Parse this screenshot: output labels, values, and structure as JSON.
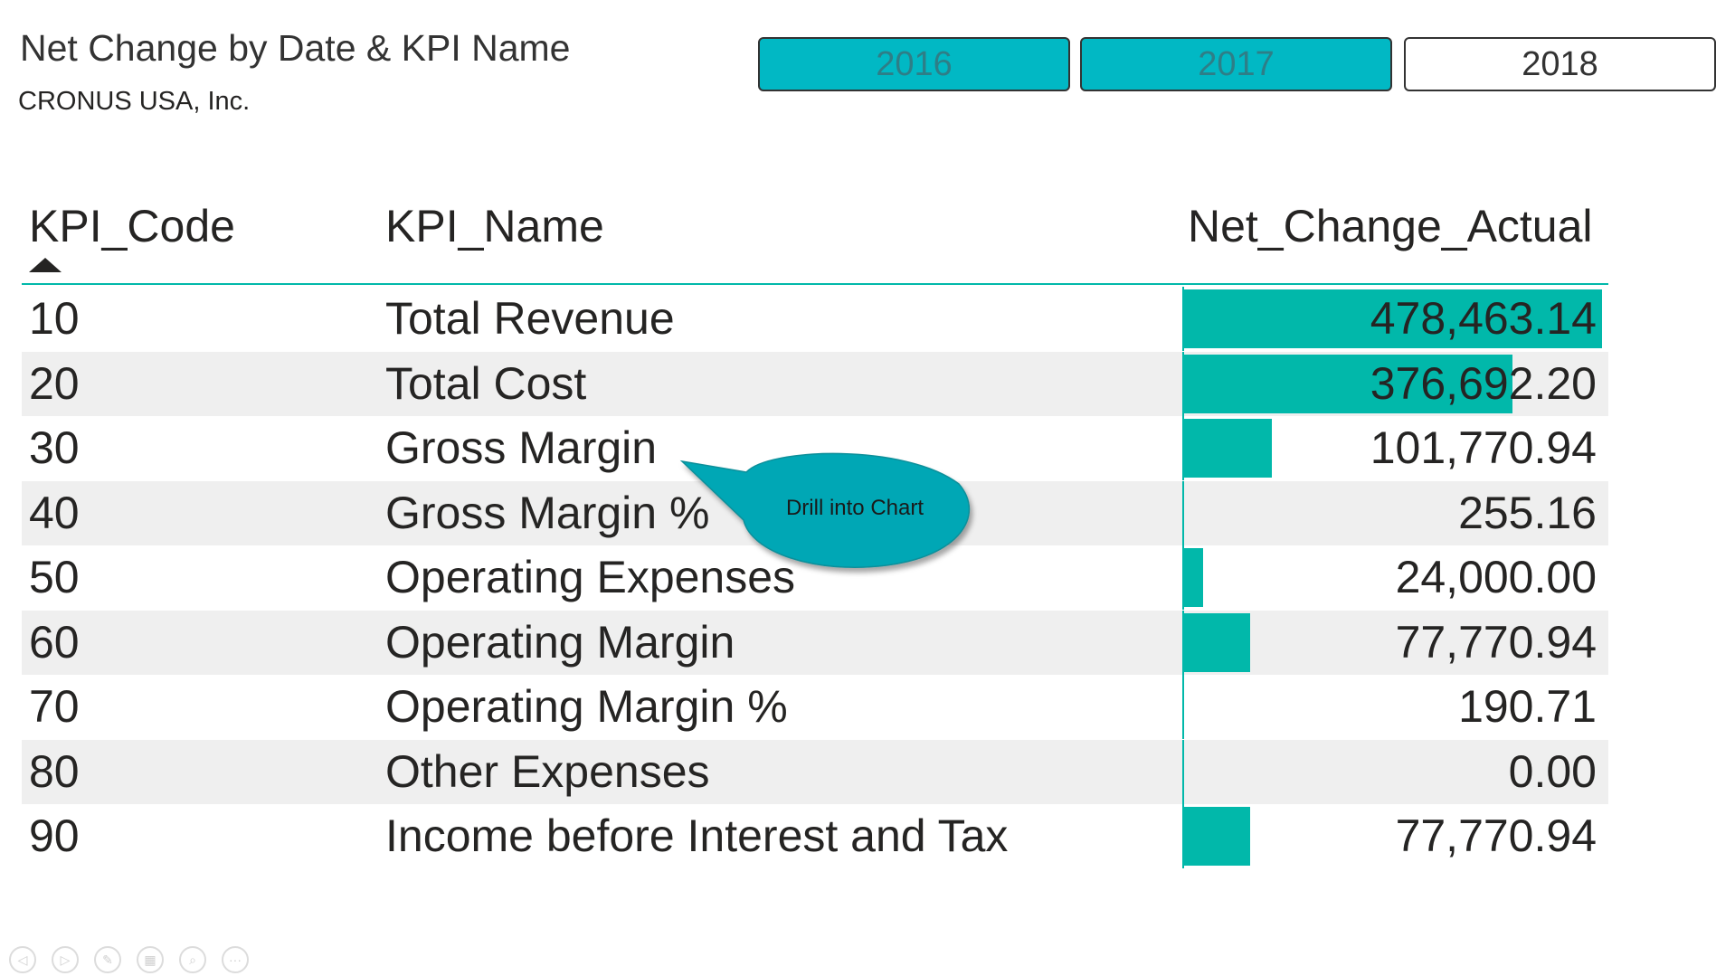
{
  "title": "Net Change by Date & KPI Name",
  "subtitle": "CRONUS USA, Inc.",
  "slicer": {
    "items": [
      {
        "label": "2016",
        "selected": true
      },
      {
        "label": "2017",
        "selected": true
      },
      {
        "label": "2018",
        "selected": false
      }
    ]
  },
  "table": {
    "columns": {
      "code": "KPI_Code",
      "name": "KPI_Name",
      "value": "Net_Change_Actual"
    },
    "sort": "KPI_Code ascending",
    "rows": [
      {
        "code": "10",
        "name": "Total Revenue",
        "value": "478,463.14",
        "bar": 478463.14
      },
      {
        "code": "20",
        "name": "Total Cost",
        "value": "376,692.20",
        "bar": 376692.2
      },
      {
        "code": "30",
        "name": "Gross Margin",
        "value": "101,770.94",
        "bar": 101770.94
      },
      {
        "code": "40",
        "name": "Gross Margin %",
        "value": "255.16",
        "bar": 255.16
      },
      {
        "code": "50",
        "name": "Operating Expenses",
        "value": "24,000.00",
        "bar": 24000.0
      },
      {
        "code": "60",
        "name": "Operating Margin",
        "value": "77,770.94",
        "bar": 77770.94
      },
      {
        "code": "70",
        "name": "Operating Margin %",
        "value": "190.71",
        "bar": 190.71
      },
      {
        "code": "80",
        "name": "Other Expenses",
        "value": "0.00",
        "bar": 0
      },
      {
        "code": "90",
        "name": "Income before Interest and Tax",
        "value": "77,770.94",
        "bar": 77770.94
      }
    ]
  },
  "callout": {
    "text": "Drill into Chart"
  },
  "nav_controls": [
    {
      "icon": "previous-icon",
      "glyph": "◁"
    },
    {
      "icon": "next-icon",
      "glyph": "▷"
    },
    {
      "icon": "pen-icon",
      "glyph": "✎"
    },
    {
      "icon": "slides-icon",
      "glyph": "▦"
    },
    {
      "icon": "zoom-icon",
      "glyph": "⌕"
    },
    {
      "icon": "more-icon",
      "glyph": "···"
    }
  ],
  "colors": {
    "accent": "#01b8aa",
    "slicer_selected": "#01b8c4",
    "row_alt": "#efefef"
  }
}
